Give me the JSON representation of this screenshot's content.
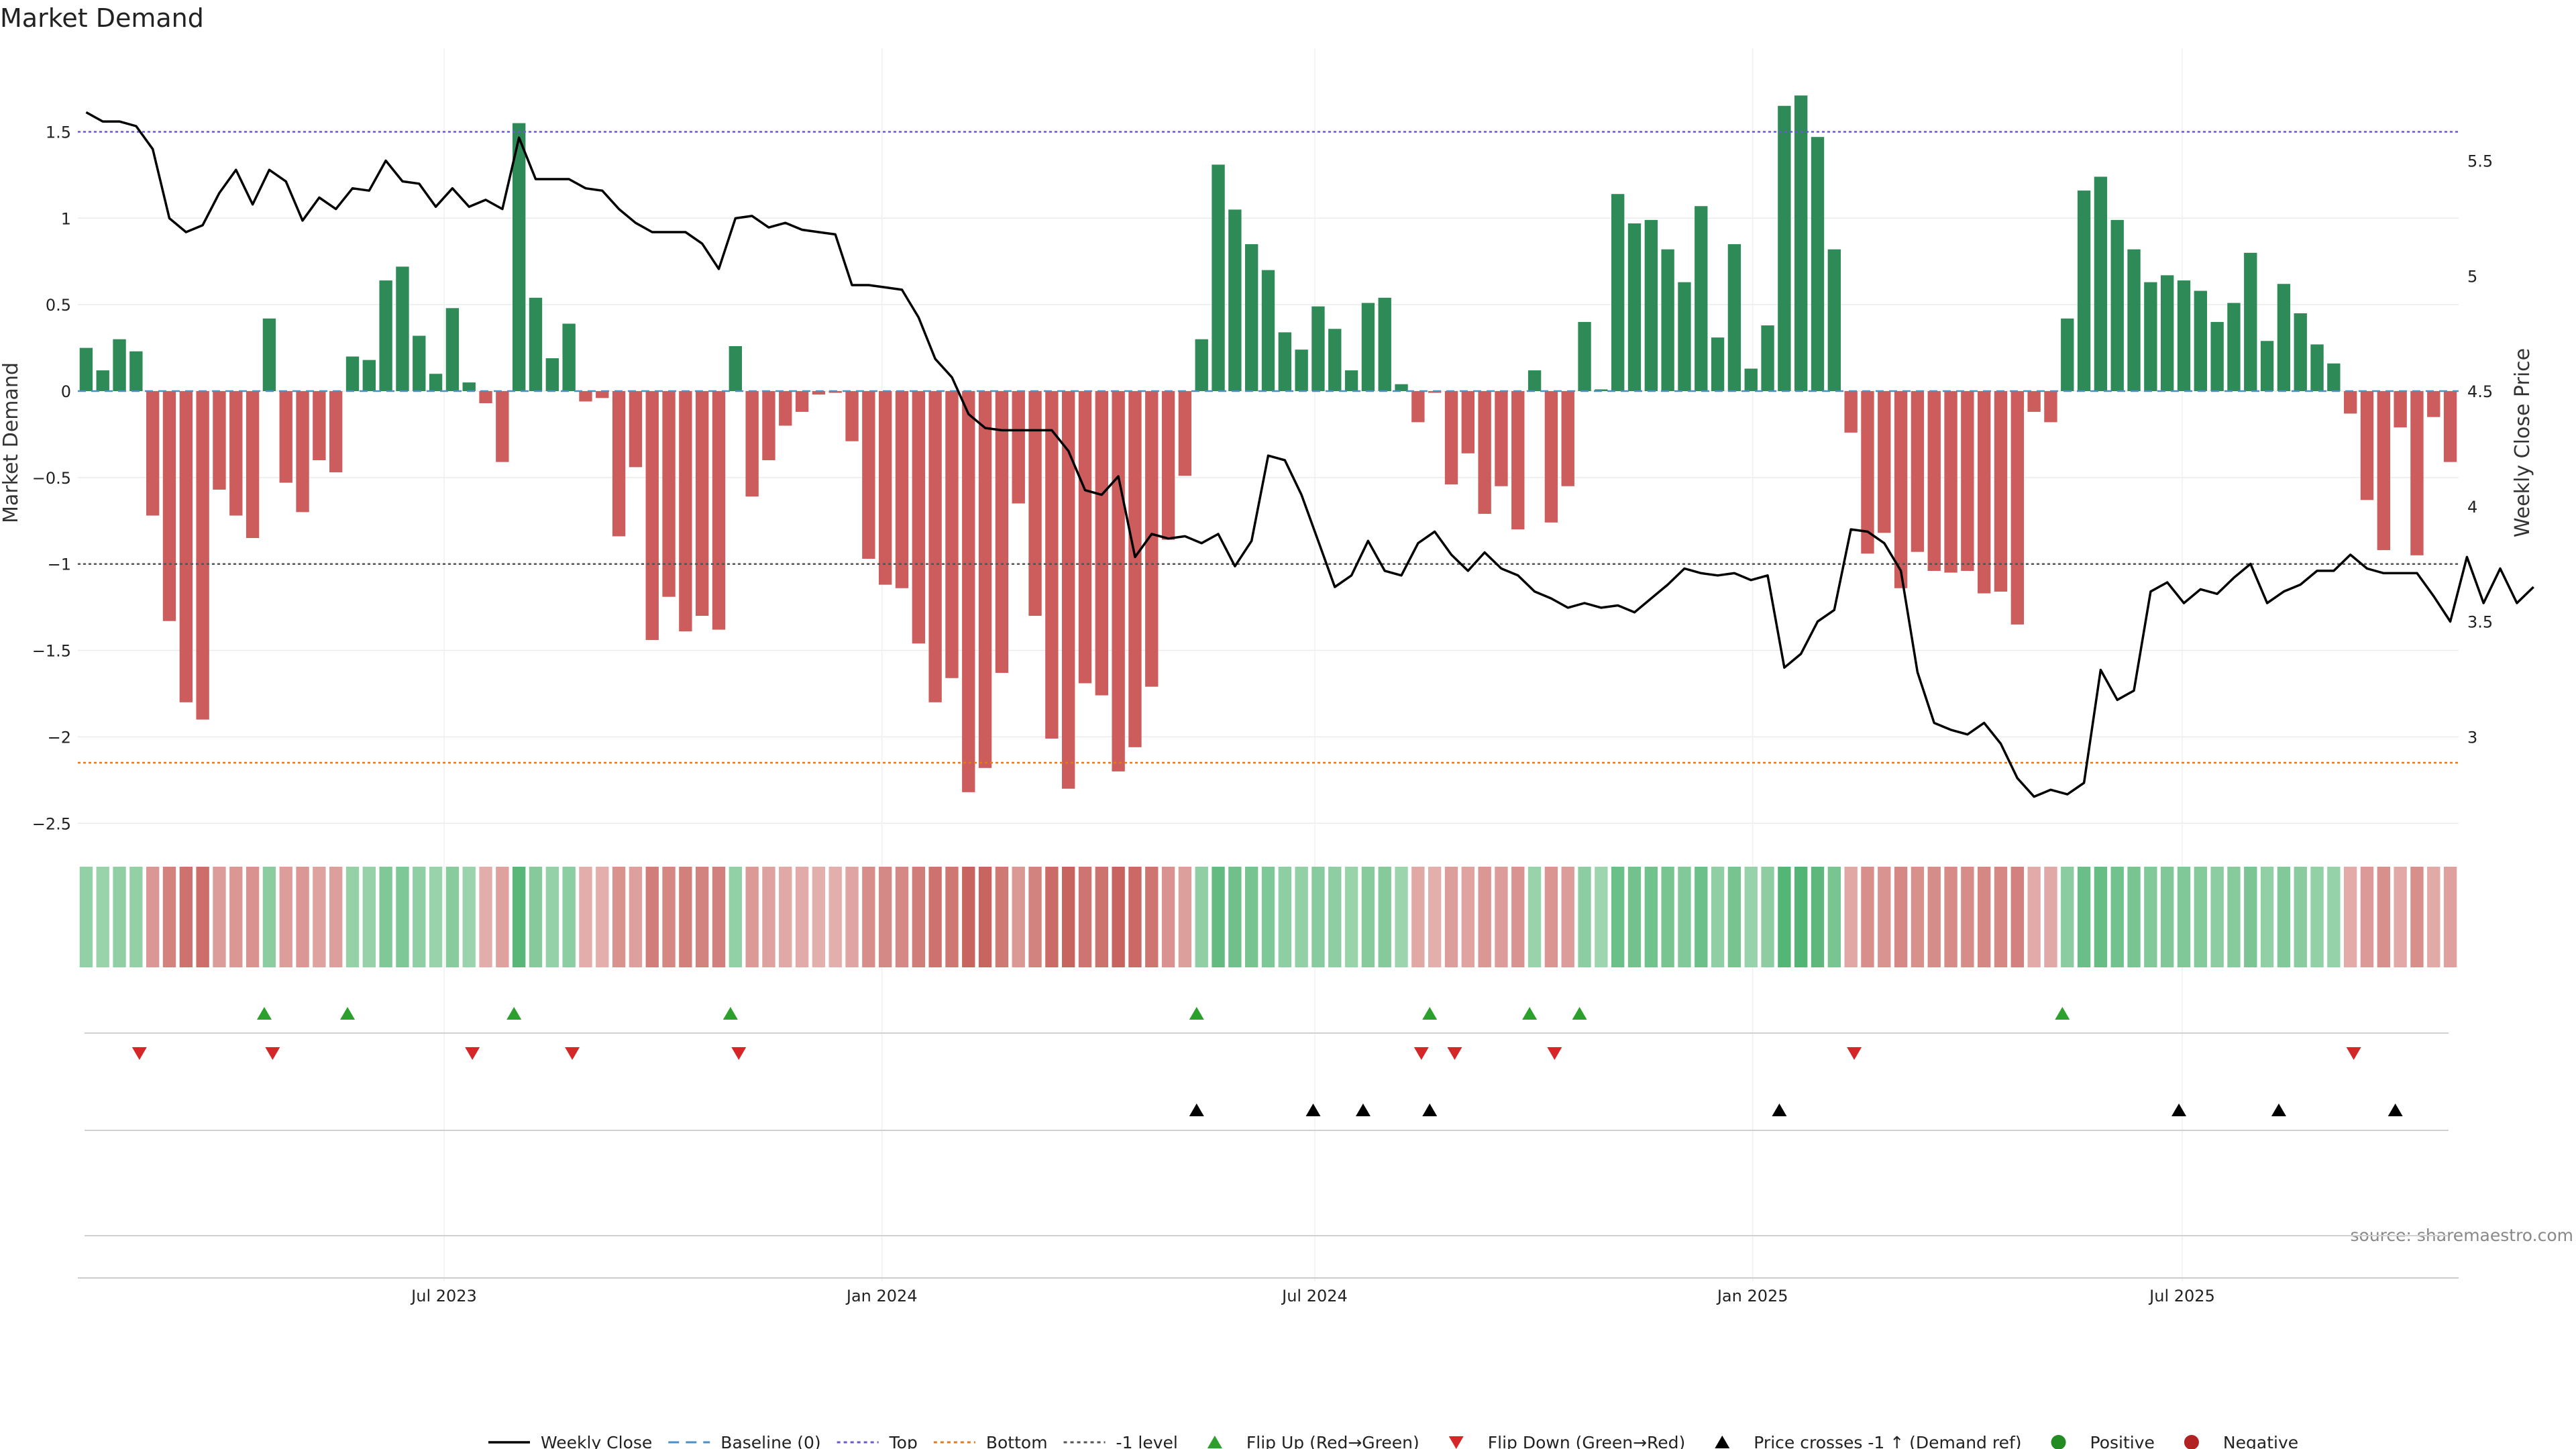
{
  "chart_data": {
    "type": "bar",
    "title": "Market Demand",
    "ylabel": "Market Demand",
    "y2label": "Weekly Close Price",
    "source": "source: sharemaestro.com",
    "ylim": [
      -2.75,
      2.0
    ],
    "y2lim": [
      2.4,
      5.8
    ],
    "yticks": [
      1.5,
      1,
      0.5,
      0,
      -0.5,
      -1,
      -1.5,
      -2,
      -2.5
    ],
    "ytick_labels": [
      "1.5",
      "1",
      "0.5",
      "0",
      "−0.5",
      "−1",
      "−1.5",
      "−2",
      "−2.5"
    ],
    "y2ticks": [
      5.5,
      5,
      4.5,
      4,
      3.5,
      3
    ],
    "y2tick_labels": [
      "5.5",
      "5",
      "4.5",
      "4",
      "3.5",
      "3"
    ],
    "reference_lines": {
      "top": 1.5,
      "bottom": -2.15,
      "minus_one": -1,
      "baseline": 0
    },
    "xtick_labels": [
      "Jul 2023",
      "Jan 2024",
      "Jul 2024",
      "Jan 2025",
      "Jul 2025"
    ],
    "xtick_weeks": [
      22,
      48.3,
      74.3,
      100.6,
      126.4
    ],
    "demand": [
      0.25,
      0.12,
      0.3,
      0.23,
      -0.72,
      -1.33,
      -1.8,
      -1.9,
      -0.57,
      -0.72,
      -0.85,
      0.42,
      -0.53,
      -0.7,
      -0.4,
      -0.47,
      0.2,
      0.18,
      0.64,
      0.72,
      0.32,
      0.1,
      0.48,
      0.05,
      -0.07,
      -0.41,
      1.55,
      0.54,
      0.19,
      0.39,
      -0.06,
      -0.04,
      -0.84,
      -0.44,
      -1.44,
      -1.19,
      -1.39,
      -1.3,
      -1.38,
      0.26,
      -0.61,
      -0.4,
      -0.2,
      -0.12,
      -0.02,
      -0.01,
      -0.29,
      -0.97,
      -1.12,
      -1.14,
      -1.46,
      -1.8,
      -1.66,
      -2.32,
      -2.18,
      -1.63,
      -0.65,
      -1.3,
      -2.01,
      -2.3,
      -1.69,
      -1.76,
      -2.2,
      -2.06,
      -1.71,
      -0.86,
      -0.49,
      0.3,
      1.31,
      1.05,
      0.85,
      0.7,
      0.34,
      0.24,
      0.49,
      0.36,
      0.12,
      0.51,
      0.54,
      0.04,
      -0.18,
      -0.01,
      -0.54,
      -0.36,
      -0.71,
      -0.55,
      -0.8,
      0.12,
      -0.76,
      -0.55,
      0.4,
      0.01,
      1.14,
      0.97,
      0.99,
      0.82,
      0.63,
      1.07,
      0.31,
      0.85,
      0.13,
      0.38,
      1.65,
      1.71,
      1.47,
      0.82,
      -0.24,
      -0.94,
      -0.82,
      -1.14,
      -0.93,
      -1.04,
      -1.05,
      -1.04,
      -1.17,
      -1.16,
      -1.35,
      -0.12,
      -0.18,
      0.42,
      1.16,
      1.24,
      0.99,
      0.82,
      0.63,
      0.67,
      0.64,
      0.58,
      0.4,
      0.51,
      0.8,
      0.29,
      0.62,
      0.45,
      0.27,
      0.16,
      -0.13,
      -0.63,
      -0.92,
      -0.21,
      -0.95,
      -0.15,
      -0.41
    ],
    "close": [
      5.71,
      5.67,
      5.67,
      5.65,
      5.55,
      5.25,
      5.19,
      5.22,
      5.36,
      5.46,
      5.31,
      5.46,
      5.41,
      5.24,
      5.34,
      5.29,
      5.38,
      5.37,
      5.5,
      5.41,
      5.4,
      5.3,
      5.38,
      5.3,
      5.33,
      5.29,
      5.6,
      5.42,
      5.42,
      5.42,
      5.38,
      5.37,
      5.29,
      5.23,
      5.19,
      5.19,
      5.19,
      5.14,
      5.03,
      5.25,
      5.26,
      5.21,
      5.23,
      5.2,
      5.19,
      5.18,
      4.96,
      4.96,
      4.95,
      4.94,
      4.82,
      4.64,
      4.56,
      4.4,
      4.34,
      4.33,
      4.33,
      4.33,
      4.33,
      4.24,
      4.07,
      4.05,
      4.13,
      3.78,
      3.88,
      3.86,
      3.87,
      3.84,
      3.88,
      3.74,
      3.85,
      4.22,
      4.2,
      4.05,
      3.85,
      3.65,
      3.7,
      3.85,
      3.72,
      3.7,
      3.84,
      3.89,
      3.79,
      3.72,
      3.8,
      3.73,
      3.7,
      3.63,
      3.6,
      3.56,
      3.58,
      3.56,
      3.57,
      3.54,
      3.6,
      3.66,
      3.73,
      3.71,
      3.7,
      3.71,
      3.68,
      3.7,
      3.3,
      3.36,
      3.5,
      3.55,
      3.9,
      3.89,
      3.84,
      3.72,
      3.28,
      3.06,
      3.03,
      3.01,
      3.06,
      2.97,
      2.82,
      2.74,
      2.77,
      2.75,
      2.8,
      3.29,
      3.16,
      3.2,
      3.63,
      3.67,
      3.58,
      3.64,
      3.62,
      3.69,
      3.75,
      3.58,
      3.63,
      3.66,
      3.72,
      3.72,
      3.79,
      3.73,
      3.71,
      3.71,
      3.71,
      3.61,
      3.5,
      3.78,
      3.58,
      3.73,
      3.58,
      3.65
    ],
    "heat_strip": {
      "description": "strength strip, one cell per week, colored green (positive) or red (negative) by intensity"
    },
    "flip_up_weeks": [
      11.2,
      16.2,
      26.2,
      39.2,
      67.2,
      81.2,
      87.2,
      90.2,
      119.2
    ],
    "flip_down_weeks": [
      3.7,
      11.7,
      23.7,
      29.7,
      39.7,
      80.7,
      82.7,
      88.7,
      106.7,
      136.7
    ],
    "price_cross_weeks": [
      67.2,
      74.2,
      77.2,
      81.2,
      102.2,
      126.2,
      132.2,
      139.2
    ],
    "legend": [
      {
        "label": "Weekly Close",
        "kind": "line",
        "color": "#000000"
      },
      {
        "label": "Baseline (0)",
        "kind": "dash",
        "color": "#4a90c8"
      },
      {
        "label": "Top",
        "kind": "dot",
        "color": "#6a5acd"
      },
      {
        "label": "Bottom",
        "kind": "dot",
        "color": "#e07b1f"
      },
      {
        "label": "-1 level",
        "kind": "dot",
        "color": "#555555"
      },
      {
        "label": "Flip Up (Red→Green)",
        "kind": "triangle-up",
        "color": "#2ca02c"
      },
      {
        "label": "Flip Down (Green→Red)",
        "kind": "triangle-down",
        "color": "#d62728"
      },
      {
        "label": "Price crosses -1 ↑ (Demand ref)",
        "kind": "triangle-up",
        "color": "#000000"
      },
      {
        "label": "Positive",
        "kind": "circle",
        "color": "#228b22"
      },
      {
        "label": "Negative",
        "kind": "circle",
        "color": "#b22222"
      }
    ],
    "colors": {
      "positive_bar": "#2e8b57",
      "negative_bar": "#cd5c5c",
      "price_line": "#000000",
      "top_line": "#6a5acd",
      "bottom_line": "#e07b1f",
      "minus_one_line": "#555555",
      "baseline": "#4a90c8",
      "flip_up": "#2ca02c",
      "flip_down": "#d62728",
      "cross": "#000000"
    }
  }
}
